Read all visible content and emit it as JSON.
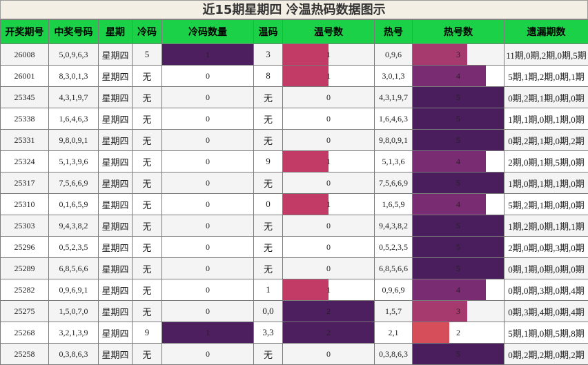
{
  "title": "近15期星期四 冷温热码数据图示",
  "headers": [
    "开奖期号",
    "中奖号码",
    "星期",
    "冷码",
    "冷码数量",
    "温码",
    "温号数",
    "热号",
    "热号数",
    "遗漏期数"
  ],
  "colors": {
    "header_bg": "#1bd147",
    "level_1_warm": "#c23b67",
    "level_2": "#4e1f5e",
    "level_3": "#a63a6e",
    "level_4": "#7a2c72",
    "level_5": "#4a1d5c",
    "hot_2": "#d64e5a",
    "cold_1": "#4e1f5e"
  },
  "rows": [
    {
      "period": "26008",
      "numbers": "5,0,9,6,3",
      "weekday": "星期四",
      "cold": "5",
      "cold_count": "1",
      "warm": "3",
      "warm_count": "1",
      "hot": "0,9,6",
      "hot_count": "3",
      "omission": "11期,0期,2期,0期,5期"
    },
    {
      "period": "26001",
      "numbers": "8,3,0,1,3",
      "weekday": "星期四",
      "cold": "无",
      "cold_count": "0",
      "warm": "8",
      "warm_count": "1",
      "hot": "3,0,1,3",
      "hot_count": "4",
      "omission": "5期,1期,2期,0期,1期"
    },
    {
      "period": "25345",
      "numbers": "4,3,1,9,7",
      "weekday": "星期四",
      "cold": "无",
      "cold_count": "0",
      "warm": "无",
      "warm_count": "0",
      "hot": "4,3,1,9,7",
      "hot_count": "5",
      "omission": "0期,2期,1期,0期,0期"
    },
    {
      "period": "25338",
      "numbers": "1,6,4,6,3",
      "weekday": "星期四",
      "cold": "无",
      "cold_count": "0",
      "warm": "无",
      "warm_count": "0",
      "hot": "1,6,4,6,3",
      "hot_count": "5",
      "omission": "1期,1期,0期,1期,0期"
    },
    {
      "period": "25331",
      "numbers": "9,8,0,9,1",
      "weekday": "星期四",
      "cold": "无",
      "cold_count": "0",
      "warm": "无",
      "warm_count": "0",
      "hot": "9,8,0,9,1",
      "hot_count": "5",
      "omission": "0期,2期,1期,0期,2期"
    },
    {
      "period": "25324",
      "numbers": "5,1,3,9,6",
      "weekday": "星期四",
      "cold": "无",
      "cold_count": "0",
      "warm": "9",
      "warm_count": "1",
      "hot": "5,1,3,6",
      "hot_count": "4",
      "omission": "2期,0期,1期,5期,0期"
    },
    {
      "period": "25317",
      "numbers": "7,5,6,6,9",
      "weekday": "星期四",
      "cold": "无",
      "cold_count": "0",
      "warm": "无",
      "warm_count": "0",
      "hot": "7,5,6,6,9",
      "hot_count": "5",
      "omission": "1期,0期,1期,1期,0期"
    },
    {
      "period": "25310",
      "numbers": "0,1,6,5,9",
      "weekday": "星期四",
      "cold": "无",
      "cold_count": "0",
      "warm": "0",
      "warm_count": "1",
      "hot": "1,6,5,9",
      "hot_count": "4",
      "omission": "5期,2期,1期,0期,0期"
    },
    {
      "period": "25303",
      "numbers": "9,4,3,8,2",
      "weekday": "星期四",
      "cold": "无",
      "cold_count": "0",
      "warm": "无",
      "warm_count": "0",
      "hot": "9,4,3,8,2",
      "hot_count": "5",
      "omission": "1期,2期,0期,1期,1期"
    },
    {
      "period": "25296",
      "numbers": "0,5,2,3,5",
      "weekday": "星期四",
      "cold": "无",
      "cold_count": "0",
      "warm": "无",
      "warm_count": "0",
      "hot": "0,5,2,3,5",
      "hot_count": "5",
      "omission": "2期,0期,0期,3期,0期"
    },
    {
      "period": "25289",
      "numbers": "6,8,5,6,6",
      "weekday": "星期四",
      "cold": "无",
      "cold_count": "0",
      "warm": "无",
      "warm_count": "0",
      "hot": "6,8,5,6,6",
      "hot_count": "5",
      "omission": "0期,1期,0期,0期,0期"
    },
    {
      "period": "25282",
      "numbers": "0,9,6,9,1",
      "weekday": "星期四",
      "cold": "无",
      "cold_count": "0",
      "warm": "1",
      "warm_count": "1",
      "hot": "0,9,6,9",
      "hot_count": "4",
      "omission": "0期,0期,3期,0期,4期"
    },
    {
      "period": "25275",
      "numbers": "1,5,0,7,0",
      "weekday": "星期四",
      "cold": "无",
      "cold_count": "0",
      "warm": "0,0",
      "warm_count": "2",
      "hot": "1,5,7",
      "hot_count": "3",
      "omission": "0期,3期,4期,0期,4期"
    },
    {
      "period": "25268",
      "numbers": "3,2,1,3,9",
      "weekday": "星期四",
      "cold": "9",
      "cold_count": "1",
      "warm": "3,3",
      "warm_count": "2",
      "hot": "2,1",
      "hot_count": "2",
      "omission": "5期,1期,0期,5期,8期"
    },
    {
      "period": "25258",
      "numbers": "0,3,8,6,3",
      "weekday": "星期四",
      "cold": "无",
      "cold_count": "0",
      "warm": "无",
      "warm_count": "0",
      "hot": "0,3,8,6,3",
      "hot_count": "5",
      "omission": "0期,2期,2期,0期,2期"
    }
  ]
}
